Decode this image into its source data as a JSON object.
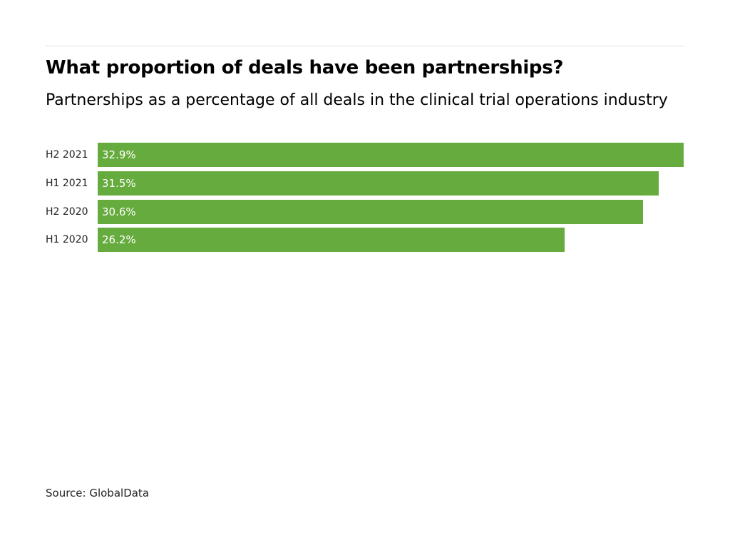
{
  "chart_data": {
    "type": "bar",
    "orientation": "horizontal",
    "title": "What proportion of deals have been partnerships?",
    "subtitle": "Partnerships as a percentage of all deals in the clinical trial operations industry",
    "categories": [
      "H2 2021",
      "H1 2021",
      "H2 2020",
      "H1 2020"
    ],
    "values": [
      32.9,
      31.5,
      30.6,
      26.2
    ],
    "value_labels": [
      "32.9%",
      "31.5%",
      "30.6%",
      "26.2%"
    ],
    "xlim": [
      0,
      32.9
    ],
    "grid": false,
    "color": "#66ab3d",
    "xlabel": "",
    "ylabel": ""
  },
  "source": "Source: GlobalData"
}
